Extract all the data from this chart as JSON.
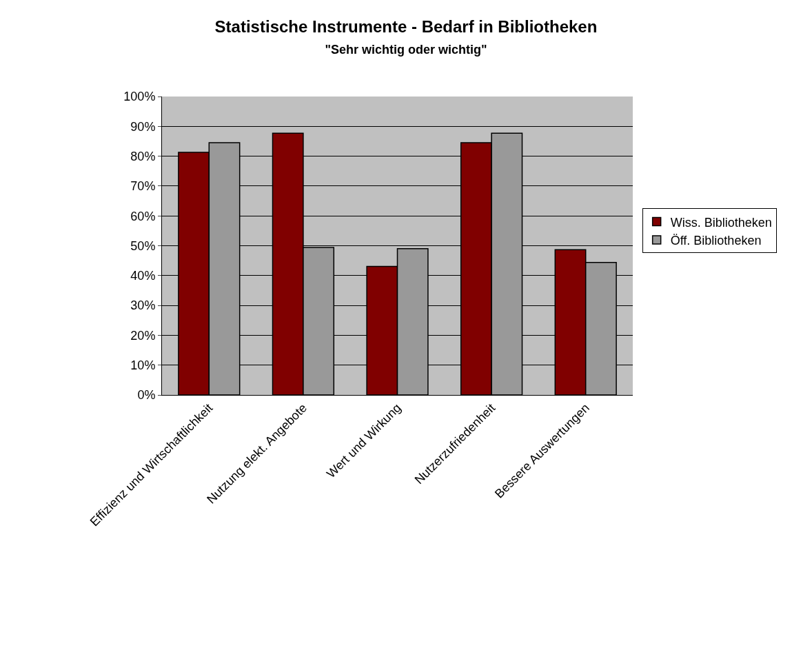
{
  "chart_data": {
    "type": "bar",
    "title": "Statistische Instrumente - Bedarf in Bibliotheken",
    "subtitle": "\"Sehr wichtig oder wichtig\"",
    "categories": [
      "Effizienz und Wirtschaftlichkeit",
      "Nutzung elekt. Angebote",
      "Wert und Wirkung",
      "Nutzerzufriedenheit",
      "Bessere Auswertungen"
    ],
    "series": [
      {
        "name": "Wiss. Bibliotheken",
        "color": "#800000",
        "values": [
          81.3,
          87.7,
          43.1,
          84.5,
          48.7
        ]
      },
      {
        "name": "Öff. Bibliotheken",
        "color": "#999999",
        "values": [
          84.5,
          49.4,
          49.0,
          87.7,
          44.4
        ]
      }
    ],
    "ylim": [
      0,
      100
    ],
    "yticks": [
      {
        "value": 0,
        "label": "0%"
      },
      {
        "value": 10,
        "label": "10%"
      },
      {
        "value": 20,
        "label": "20%"
      },
      {
        "value": 30,
        "label": "30%"
      },
      {
        "value": 40,
        "label": "40%"
      },
      {
        "value": 50,
        "label": "50%"
      },
      {
        "value": 60,
        "label": "60%"
      },
      {
        "value": 70,
        "label": "70%"
      },
      {
        "value": 80,
        "label": "80%"
      },
      {
        "value": 90,
        "label": "90%"
      },
      {
        "value": 100,
        "label": "100%"
      }
    ],
    "grid": "y",
    "legend": "right"
  }
}
